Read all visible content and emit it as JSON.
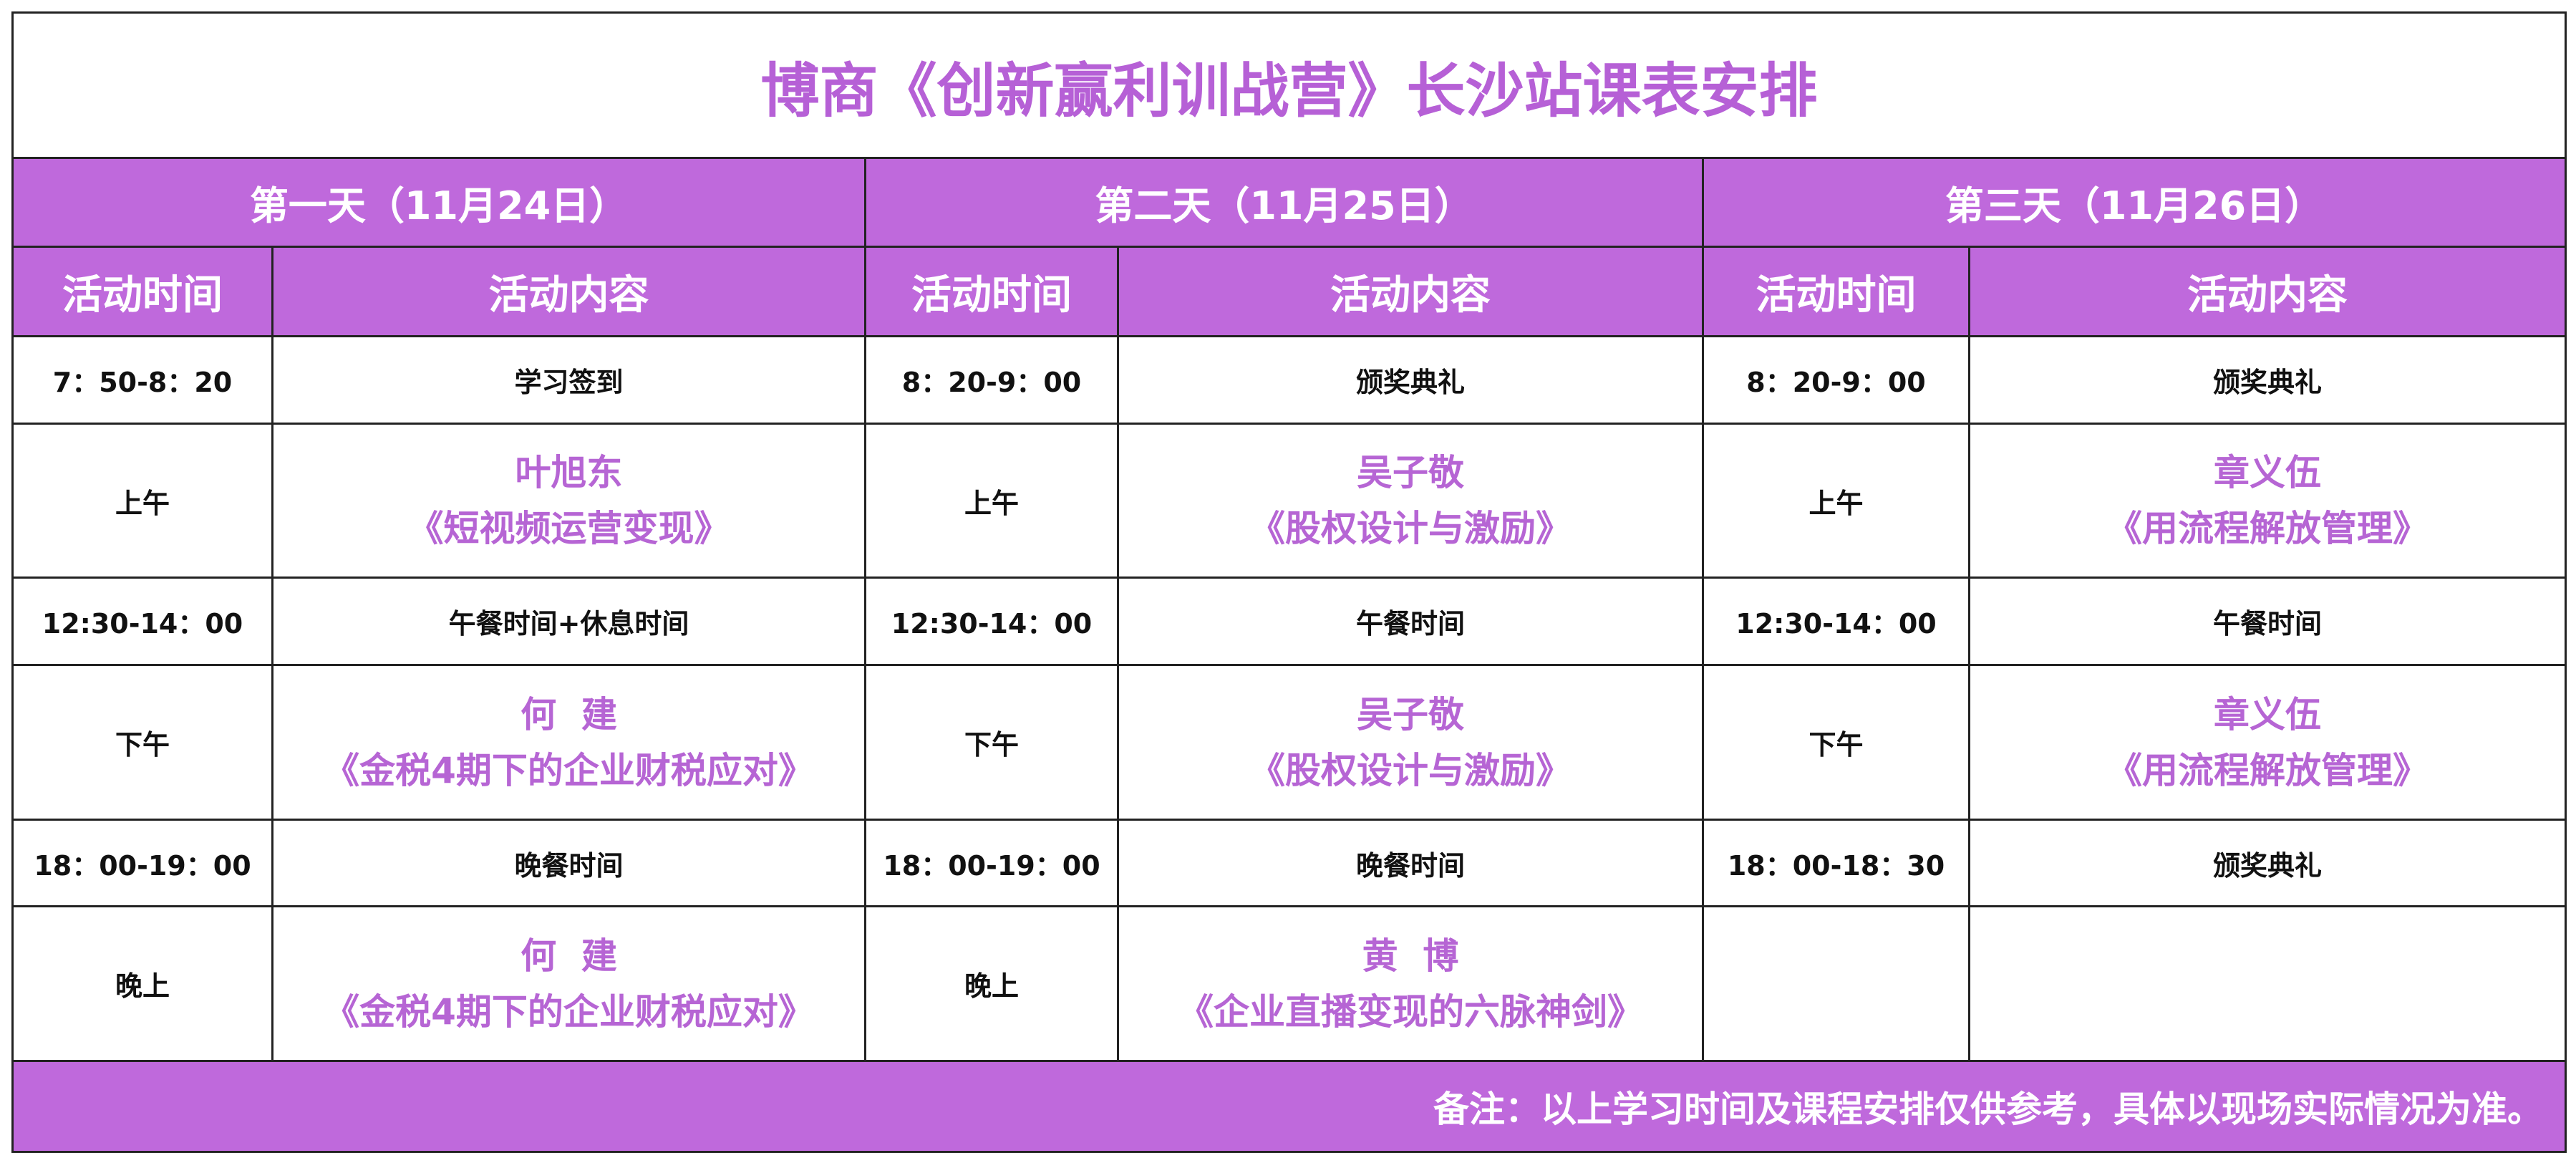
{
  "header": {
    "title": "博商《创新赢利训战营》长沙站课表安排"
  },
  "days": [
    "第一天（11月24日）",
    "第二天（11月25日）",
    "第三天（11月26日）"
  ],
  "column_headers": [
    "活动时间",
    "活动内容"
  ],
  "rows": [
    [
      {
        "time": "7：50-8：20",
        "content": "学习签到"
      },
      {
        "time": "8：20-9：00",
        "content": "颁奖典礼"
      },
      {
        "time": "8：20-9：00",
        "content": "颁奖典礼"
      }
    ],
    [
      {
        "time": "上午",
        "speaker": "叶旭东",
        "course": "《短视频运营变现》"
      },
      {
        "time": "上午",
        "speaker": "吴子敬",
        "course": "《股权设计与激励》"
      },
      {
        "time": "上午",
        "speaker": "章义伍",
        "course": "《用流程解放管理》"
      }
    ],
    [
      {
        "time": "12:30-14：00",
        "content": "午餐时间+休息时间"
      },
      {
        "time": "12:30-14：00",
        "content": "午餐时间"
      },
      {
        "time": "12:30-14：00",
        "content": "午餐时间"
      }
    ],
    [
      {
        "time": "下午",
        "speaker": "何  建",
        "course": "《金税4期下的企业财税应对》"
      },
      {
        "time": "下午",
        "speaker": "吴子敬",
        "course": "《股权设计与激励》"
      },
      {
        "time": "下午",
        "speaker": "章义伍",
        "course": "《用流程解放管理》"
      }
    ],
    [
      {
        "time": "18：00-19：00",
        "content": "晚餐时间"
      },
      {
        "time": "18：00-19：00",
        "content": "晚餐时间"
      },
      {
        "time": "18：00-18：30",
        "content": "颁奖典礼"
      }
    ],
    [
      {
        "time": "晚上",
        "speaker": "何  建",
        "course": "《金税4期下的企业财税应对》"
      },
      {
        "time": "晚上",
        "speaker": "黄  博",
        "course": "《企业直播变现的六脉神剑》"
      },
      null
    ]
  ],
  "note": "备注：以上学习时间及课程安排仅供参考，具体以现场实际情况为准。"
}
